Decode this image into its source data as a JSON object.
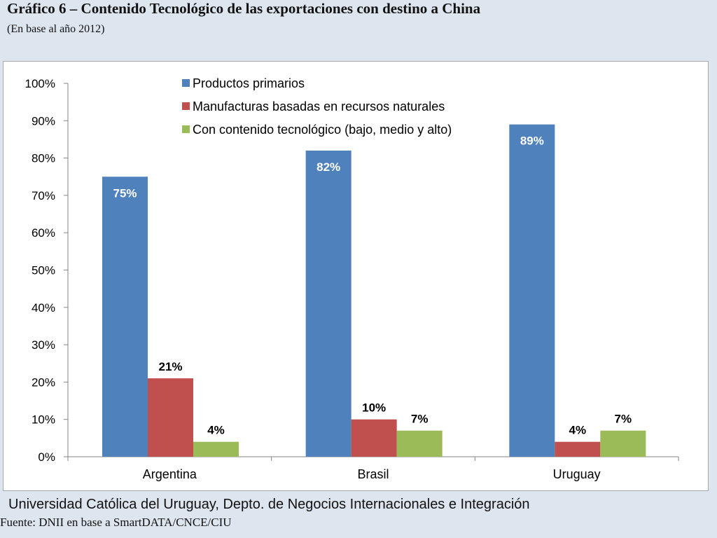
{
  "title": "Gráfico 6 – Contenido Tecnológico de las exportaciones con destino a China",
  "subtitle": "(En base al año 2012)",
  "footer": {
    "institution": "Universidad Católica del Uruguay, Depto. de Negocios Internacionales e Integración",
    "source": "Fuente: DNII en base a SmartDATA/CNCE/CIU"
  },
  "chart_data": {
    "type": "bar",
    "categories": [
      "Argentina",
      "Brasil",
      "Uruguay"
    ],
    "series": [
      {
        "name": "Productos primarios",
        "color": "#4f81bd",
        "label_color": "#ffffff",
        "label_position": "inside-top",
        "values": [
          75,
          82,
          89
        ],
        "labels": [
          "75%",
          "82%",
          "89%"
        ]
      },
      {
        "name": "Manufacturas basadas en recursos naturales",
        "color": "#c0504d",
        "label_color": "#000000",
        "label_position": "above",
        "values": [
          21,
          10,
          4
        ],
        "labels": [
          "21%",
          "10%",
          "4%"
        ]
      },
      {
        "name": "Con contenido tecnológico (bajo, medio y alto)",
        "color": "#9bbb59",
        "label_color": "#000000",
        "label_position": "above",
        "values": [
          4,
          7,
          7
        ],
        "labels": [
          "4%",
          "7%",
          "7%"
        ]
      }
    ],
    "ylim": [
      0,
      100
    ],
    "yticks": [
      0,
      10,
      20,
      30,
      40,
      50,
      60,
      70,
      80,
      90,
      100
    ],
    "ytick_labels": [
      "0%",
      "10%",
      "20%",
      "30%",
      "40%",
      "50%",
      "60%",
      "70%",
      "80%",
      "90%",
      "100%"
    ],
    "grid": false,
    "legend_position": "top-center"
  }
}
